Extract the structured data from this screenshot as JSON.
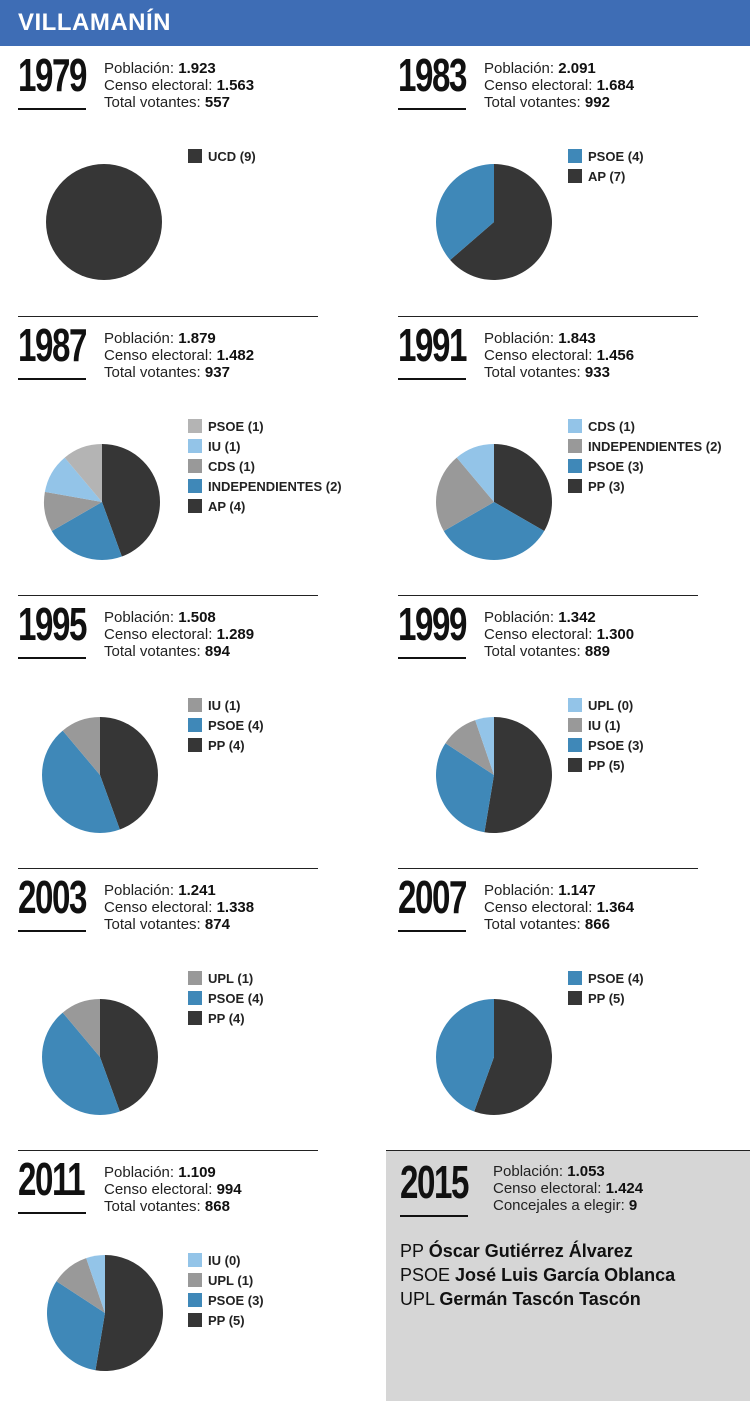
{
  "header": {
    "title": "VILLAMANÍN"
  },
  "colors": {
    "dark": "#363636",
    "blue": "#3f88b8",
    "grey": "#999999",
    "lightblue": "#93c4e8",
    "lightgrey": "#b4b4b4",
    "header": "#3e6db5",
    "finalbg": "#d6d6d6"
  },
  "labels": {
    "poblacion": "Población:",
    "censo": "Censo electoral:",
    "votantes": "Total votantes:",
    "concejales": "Concejales a elegir:"
  },
  "chart_data": [
    {
      "type": "pie",
      "year": "1979",
      "poblacion": "1.923",
      "censo": "1.563",
      "votantes": "557",
      "slices": [
        {
          "label": "UCD (9)",
          "value": 9,
          "color": "#363636"
        }
      ]
    },
    {
      "type": "pie",
      "year": "1983",
      "poblacion": "2.091",
      "censo": "1.684",
      "votantes": "992",
      "slices": [
        {
          "label": "PSOE (4)",
          "value": 4,
          "color": "#3f88b8"
        },
        {
          "label": "AP (7)",
          "value": 7,
          "color": "#363636"
        }
      ]
    },
    {
      "type": "pie",
      "year": "1987",
      "poblacion": "1.879",
      "censo": "1.482",
      "votantes": "937",
      "slices": [
        {
          "label": "PSOE (1)",
          "value": 1,
          "color": "#b4b4b4"
        },
        {
          "label": "IU (1)",
          "value": 1,
          "color": "#93c4e8"
        },
        {
          "label": "CDS (1)",
          "value": 1,
          "color": "#999999"
        },
        {
          "label": "INDEPENDIENTES (2)",
          "value": 2,
          "color": "#3f88b8"
        },
        {
          "label": "AP (4)",
          "value": 4,
          "color": "#363636"
        }
      ]
    },
    {
      "type": "pie",
      "year": "1991",
      "poblacion": "1.843",
      "censo": "1.456",
      "votantes": "933",
      "slices": [
        {
          "label": "CDS (1)",
          "value": 1,
          "color": "#93c4e8"
        },
        {
          "label": "INDEPENDIENTES (2)",
          "value": 2,
          "color": "#999999"
        },
        {
          "label": "PSOE (3)",
          "value": 3,
          "color": "#3f88b8"
        },
        {
          "label": "PP (3)",
          "value": 3,
          "color": "#363636"
        }
      ]
    },
    {
      "type": "pie",
      "year": "1995",
      "poblacion": "1.508",
      "censo": "1.289",
      "votantes": "894",
      "slices": [
        {
          "label": "IU (1)",
          "value": 1,
          "color": "#999999"
        },
        {
          "label": "PSOE (4)",
          "value": 4,
          "color": "#3f88b8"
        },
        {
          "label": "PP (4)",
          "value": 4,
          "color": "#363636"
        }
      ]
    },
    {
      "type": "pie",
      "year": "1999",
      "poblacion": "1.342",
      "censo": "1.300",
      "votantes": "889",
      "slices": [
        {
          "label": "UPL (0)",
          "value": 0.5,
          "color": "#93c4e8"
        },
        {
          "label": "IU (1)",
          "value": 1,
          "color": "#999999"
        },
        {
          "label": "PSOE (3)",
          "value": 3,
          "color": "#3f88b8"
        },
        {
          "label": "PP (5)",
          "value": 5,
          "color": "#363636"
        }
      ]
    },
    {
      "type": "pie",
      "year": "2003",
      "poblacion": "1.241",
      "censo": "1.338",
      "votantes": "874",
      "slices": [
        {
          "label": "UPL (1)",
          "value": 1,
          "color": "#999999"
        },
        {
          "label": "PSOE (4)",
          "value": 4,
          "color": "#3f88b8"
        },
        {
          "label": "PP (4)",
          "value": 4,
          "color": "#363636"
        }
      ]
    },
    {
      "type": "pie",
      "year": "2007",
      "poblacion": "1.147",
      "censo": "1.364",
      "votantes": "866",
      "slices": [
        {
          "label": "PSOE (4)",
          "value": 4,
          "color": "#3f88b8"
        },
        {
          "label": "PP (5)",
          "value": 5,
          "color": "#363636"
        }
      ]
    },
    {
      "type": "pie",
      "year": "2011",
      "poblacion": "1.109",
      "censo": "994",
      "votantes": "868",
      "slices": [
        {
          "label": "IU (0)",
          "value": 0.5,
          "color": "#93c4e8"
        },
        {
          "label": "UPL (1)",
          "value": 1,
          "color": "#999999"
        },
        {
          "label": "PSOE (3)",
          "value": 3,
          "color": "#3f88b8"
        },
        {
          "label": "PP (5)",
          "value": 5,
          "color": "#363636"
        }
      ]
    }
  ],
  "final": {
    "year": "2015",
    "poblacion": "1.053",
    "censo": "1.424",
    "concejales": "9",
    "candidates": [
      {
        "party": "PP",
        "name": "Óscar Gutiérrez Álvarez"
      },
      {
        "party": "PSOE",
        "name": "José Luis García Oblanca"
      },
      {
        "party": "UPL",
        "name": "Germán Tascón Tascón"
      }
    ]
  }
}
